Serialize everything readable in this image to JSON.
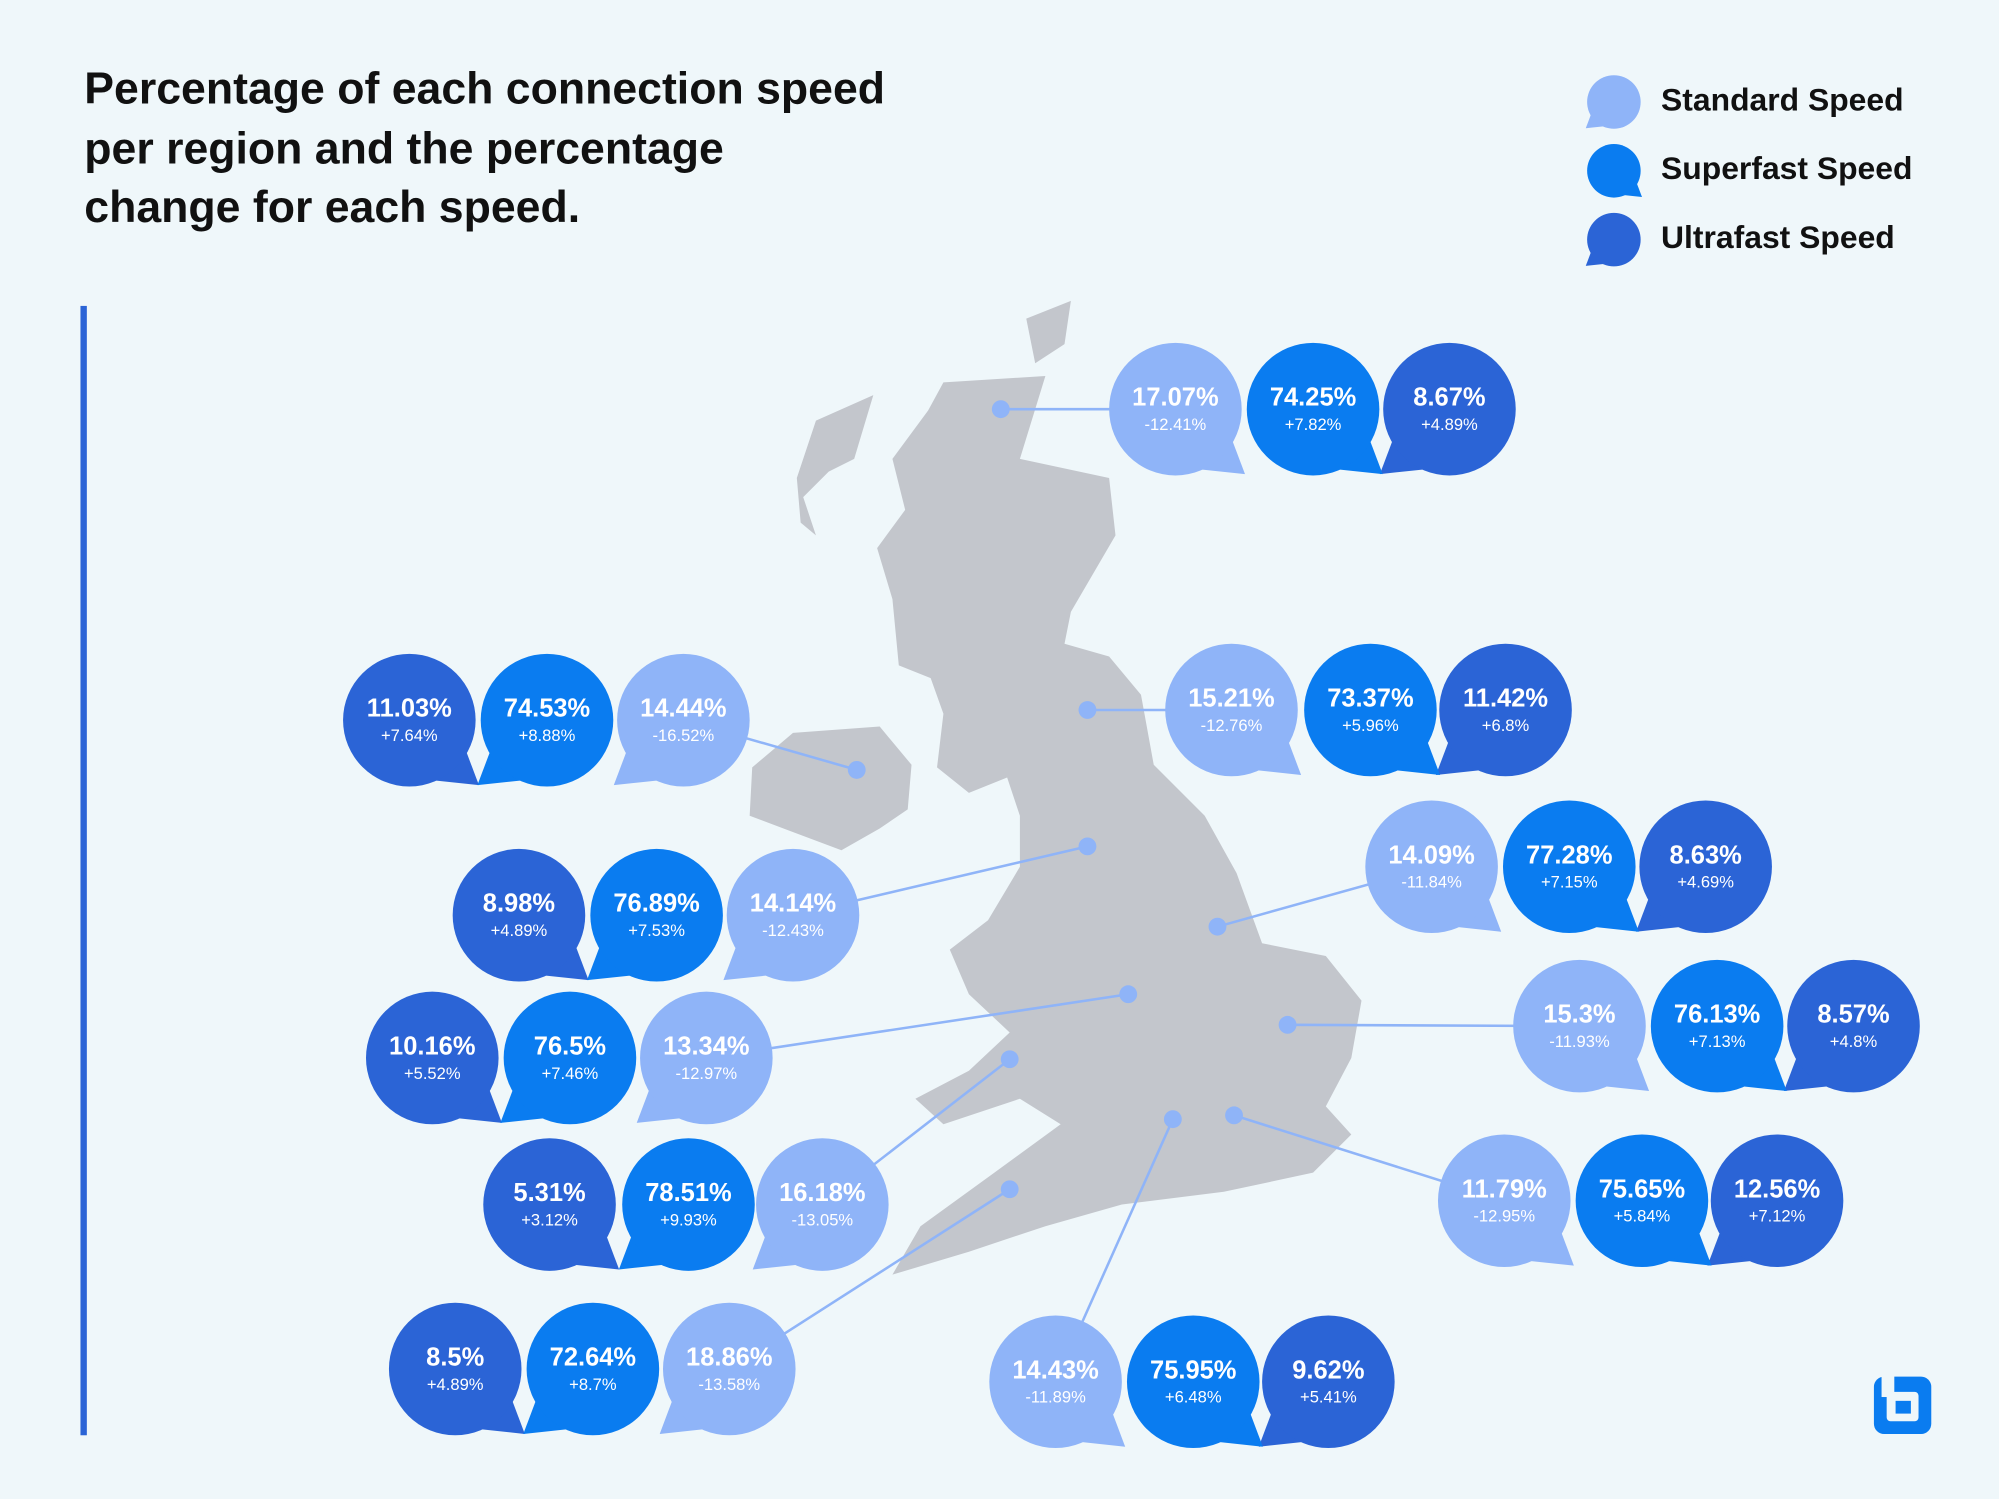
{
  "title": [
    "Percentage of each connection speed",
    "per region and the percentage",
    "change for each speed."
  ],
  "legend": [
    {
      "label": "Standard Speed",
      "color": "#8fb4f8"
    },
    {
      "label": "Superfast Speed",
      "color": "#0a7cf0"
    },
    {
      "label": "Ultrafast Speed",
      "color": "#2b64d6"
    }
  ],
  "regions": [
    {
      "standard": {
        "value": "17.07%",
        "change": "-12.41%"
      },
      "superfast": {
        "value": "74.25%",
        "change": "+7.82%"
      },
      "ultrafast": {
        "value": "8.67%",
        "change": "+4.89%"
      }
    },
    {
      "standard": {
        "value": "15.21%",
        "change": "-12.76%"
      },
      "superfast": {
        "value": "73.37%",
        "change": "+5.96%"
      },
      "ultrafast": {
        "value": "11.42%",
        "change": "+6.8%"
      }
    },
    {
      "standard": {
        "value": "14.44%",
        "change": "-16.52%"
      },
      "superfast": {
        "value": "74.53%",
        "change": "+8.88%"
      },
      "ultrafast": {
        "value": "11.03%",
        "change": "+7.64%"
      }
    },
    {
      "standard": {
        "value": "14.14%",
        "change": "-12.43%"
      },
      "superfast": {
        "value": "76.89%",
        "change": "+7.53%"
      },
      "ultrafast": {
        "value": "8.98%",
        "change": "+4.89%"
      }
    },
    {
      "standard": {
        "value": "14.09%",
        "change": "-11.84%"
      },
      "superfast": {
        "value": "77.28%",
        "change": "+7.15%"
      },
      "ultrafast": {
        "value": "8.63%",
        "change": "+4.69%"
      }
    },
    {
      "standard": {
        "value": "13.34%",
        "change": "-12.97%"
      },
      "superfast": {
        "value": "76.5%",
        "change": "+7.46%"
      },
      "ultrafast": {
        "value": "10.16%",
        "change": "+5.52%"
      }
    },
    {
      "standard": {
        "value": "15.3%",
        "change": "-11.93%"
      },
      "superfast": {
        "value": "76.13%",
        "change": "+7.13%"
      },
      "ultrafast": {
        "value": "8.57%",
        "change": "+4.8%"
      }
    },
    {
      "standard": {
        "value": "16.18%",
        "change": "-13.05%"
      },
      "superfast": {
        "value": "78.51%",
        "change": "+9.93%"
      },
      "ultrafast": {
        "value": "5.31%",
        "change": "+3.12%"
      }
    },
    {
      "standard": {
        "value": "11.79%",
        "change": "-12.95%"
      },
      "superfast": {
        "value": "75.65%",
        "change": "+5.84%"
      },
      "ultrafast": {
        "value": "12.56%",
        "change": "+7.12%"
      }
    },
    {
      "standard": {
        "value": "18.86%",
        "change": "-13.58%"
      },
      "superfast": {
        "value": "72.64%",
        "change": "+8.7%"
      },
      "ultrafast": {
        "value": "8.5%",
        "change": "+4.89%"
      }
    },
    {
      "standard": {
        "value": "14.43%",
        "change": "-11.89%"
      },
      "superfast": {
        "value": "75.95%",
        "change": "+6.48%"
      },
      "ultrafast": {
        "value": "9.62%",
        "change": "+5.41%"
      }
    }
  ]
}
